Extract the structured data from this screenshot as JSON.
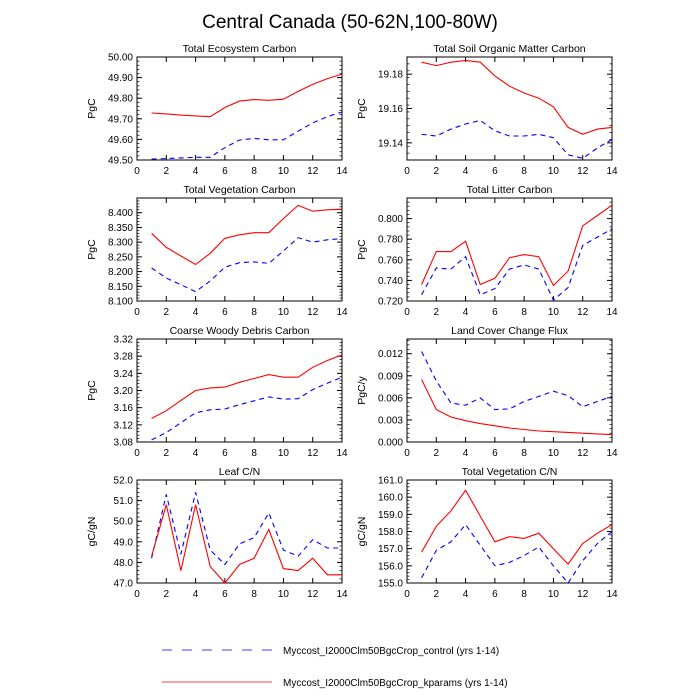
{
  "figure": {
    "title": "Central Canada (50-62N,100-80W)",
    "colors": {
      "control": "#0000ff",
      "kparams": "#ff0000"
    }
  },
  "legend": {
    "placement": "bottom-center",
    "entries": [
      {
        "label": "Myccost_I2000Clm50BgcCrop_control (yrs 1-14)",
        "series": "control",
        "style": "dashed",
        "color": "#0000ff"
      },
      {
        "label": "Myccost_I2000Clm50BgcCrop_kparams (yrs 1-14)",
        "series": "kparams",
        "style": "solid",
        "color": "#ff0000"
      }
    ]
  },
  "chart_data": [
    {
      "type": "line",
      "title": "Total Ecosystem Carbon",
      "xlabel": "",
      "ylabel": "PgC",
      "xlim": [
        0,
        14
      ],
      "ylim": [
        49.5,
        50.0
      ],
      "xticks": [
        0,
        2,
        4,
        6,
        8,
        10,
        12,
        14
      ],
      "yticks": [
        49.5,
        49.6,
        49.7,
        49.8,
        49.9,
        50.0
      ],
      "ytick_labels": [
        "49.50",
        "49.60",
        "49.70",
        "49.80",
        "49.90",
        "50.00"
      ],
      "x": [
        1,
        2,
        3,
        4,
        5,
        6,
        7,
        8,
        9,
        10,
        11,
        12,
        13,
        14
      ],
      "series": [
        {
          "name": "control",
          "values": [
            49.505,
            49.507,
            49.51,
            49.513,
            49.513,
            49.56,
            49.597,
            49.605,
            49.598,
            49.598,
            49.64,
            49.68,
            49.71,
            49.733
          ]
        },
        {
          "name": "kparams",
          "values": [
            49.728,
            49.724,
            49.718,
            49.714,
            49.71,
            49.755,
            49.786,
            49.793,
            49.79,
            49.795,
            49.833,
            49.867,
            49.895,
            49.917
          ]
        }
      ]
    },
    {
      "type": "line",
      "title": "Total Soil Organic Matter Carbon",
      "xlabel": "",
      "ylabel": "PgC",
      "xlim": [
        0,
        14
      ],
      "ylim": [
        19.13,
        19.19
      ],
      "xticks": [
        0,
        2,
        4,
        6,
        8,
        10,
        12,
        14
      ],
      "yticks": [
        19.14,
        19.16,
        19.18
      ],
      "ytick_labels": [
        "19.14",
        "19.16",
        "19.18"
      ],
      "x": [
        1,
        2,
        3,
        4,
        5,
        6,
        7,
        8,
        9,
        10,
        11,
        12,
        13,
        14
      ],
      "series": [
        {
          "name": "control",
          "values": [
            19.145,
            19.144,
            19.148,
            19.151,
            19.153,
            19.147,
            19.144,
            19.144,
            19.145,
            19.143,
            19.133,
            19.131,
            19.137,
            19.142
          ]
        },
        {
          "name": "kparams",
          "values": [
            19.187,
            19.185,
            19.187,
            19.188,
            19.187,
            19.179,
            19.173,
            19.169,
            19.166,
            19.161,
            19.149,
            19.145,
            19.148,
            19.149
          ]
        }
      ]
    },
    {
      "type": "line",
      "title": "Total Vegetation Carbon",
      "xlabel": "",
      "ylabel": "PgC",
      "xlim": [
        0,
        14
      ],
      "ylim": [
        8.1,
        8.45
      ],
      "xticks": [
        0,
        2,
        4,
        6,
        8,
        10,
        12,
        14
      ],
      "yticks": [
        8.1,
        8.15,
        8.2,
        8.25,
        8.3,
        8.35,
        8.4
      ],
      "ytick_labels": [
        "8.100",
        "8.150",
        "8.200",
        "8.250",
        "8.300",
        "8.350",
        "8.400"
      ],
      "x": [
        1,
        2,
        3,
        4,
        5,
        6,
        7,
        8,
        9,
        10,
        11,
        12,
        13,
        14
      ],
      "series": [
        {
          "name": "control",
          "values": [
            8.212,
            8.178,
            8.155,
            8.132,
            8.168,
            8.215,
            8.23,
            8.233,
            8.228,
            8.27,
            8.315,
            8.3,
            8.308,
            8.312
          ]
        },
        {
          "name": "kparams",
          "values": [
            8.33,
            8.282,
            8.253,
            8.224,
            8.262,
            8.313,
            8.325,
            8.332,
            8.332,
            8.38,
            8.425,
            8.405,
            8.41,
            8.412
          ]
        }
      ]
    },
    {
      "type": "line",
      "title": "Total Litter Carbon",
      "xlabel": "",
      "ylabel": "PgC",
      "xlim": [
        0,
        14
      ],
      "ylim": [
        0.72,
        0.82
      ],
      "xticks": [
        0,
        2,
        4,
        6,
        8,
        10,
        12,
        14
      ],
      "yticks": [
        0.72,
        0.74,
        0.76,
        0.78,
        0.8
      ],
      "ytick_labels": [
        "0.720",
        "0.740",
        "0.760",
        "0.780",
        "0.800"
      ],
      "x": [
        1,
        2,
        3,
        4,
        5,
        6,
        7,
        8,
        9,
        10,
        11,
        12,
        13,
        14
      ],
      "series": [
        {
          "name": "control",
          "values": [
            0.726,
            0.752,
            0.751,
            0.763,
            0.726,
            0.732,
            0.751,
            0.755,
            0.751,
            0.721,
            0.733,
            0.774,
            0.782,
            0.79
          ]
        },
        {
          "name": "kparams",
          "values": [
            0.736,
            0.768,
            0.768,
            0.778,
            0.736,
            0.742,
            0.762,
            0.765,
            0.763,
            0.735,
            0.749,
            0.793,
            0.803,
            0.813
          ]
        }
      ]
    },
    {
      "type": "line",
      "title": "Coarse Woody Debris Carbon",
      "xlabel": "",
      "ylabel": "PgC",
      "xlim": [
        0,
        14
      ],
      "ylim": [
        3.08,
        3.32
      ],
      "xticks": [
        0,
        2,
        4,
        6,
        8,
        10,
        12,
        14
      ],
      "yticks": [
        3.08,
        3.12,
        3.16,
        3.2,
        3.24,
        3.28,
        3.32
      ],
      "ytick_labels": [
        "3.08",
        "3.12",
        "3.16",
        "3.20",
        "3.24",
        "3.28",
        "3.32"
      ],
      "x": [
        1,
        2,
        3,
        4,
        5,
        6,
        7,
        8,
        9,
        10,
        11,
        12,
        13,
        14
      ],
      "series": [
        {
          "name": "control",
          "values": [
            3.085,
            3.102,
            3.125,
            3.148,
            3.155,
            3.157,
            3.167,
            3.176,
            3.185,
            3.18,
            3.181,
            3.202,
            3.217,
            3.231
          ]
        },
        {
          "name": "kparams",
          "values": [
            3.135,
            3.153,
            3.177,
            3.2,
            3.206,
            3.208,
            3.219,
            3.228,
            3.237,
            3.231,
            3.231,
            3.254,
            3.27,
            3.283
          ]
        }
      ]
    },
    {
      "type": "line",
      "title": "Land Cover Change Flux",
      "xlabel": "",
      "ylabel": "PgC/y",
      "xlim": [
        0,
        14
      ],
      "ylim": [
        0.0,
        0.014
      ],
      "xticks": [
        0,
        2,
        4,
        6,
        8,
        10,
        12,
        14
      ],
      "yticks": [
        0.0,
        0.003,
        0.006,
        0.009,
        0.012
      ],
      "ytick_labels": [
        "0.000",
        "0.003",
        "0.006",
        "0.009",
        "0.012"
      ],
      "x": [
        1,
        2,
        3,
        4,
        5,
        6,
        7,
        8,
        9,
        10,
        11,
        12,
        13,
        14
      ],
      "series": [
        {
          "name": "control",
          "values": [
            0.0123,
            0.0083,
            0.0053,
            0.005,
            0.006,
            0.0044,
            0.0045,
            0.0055,
            0.0062,
            0.0069,
            0.0063,
            0.0048,
            0.0055,
            0.0062
          ]
        },
        {
          "name": "kparams",
          "values": [
            0.0085,
            0.0044,
            0.0034,
            0.0029,
            0.0025,
            0.0022,
            0.0019,
            0.0017,
            0.0015,
            0.0014,
            0.0013,
            0.0012,
            0.0011,
            0.001
          ]
        }
      ]
    },
    {
      "type": "line",
      "title": "Leaf C/N",
      "xlabel": "",
      "ylabel": "gC/gN",
      "xlim": [
        0,
        14
      ],
      "ylim": [
        47.0,
        52.0
      ],
      "xticks": [
        0,
        2,
        4,
        6,
        8,
        10,
        12,
        14
      ],
      "yticks": [
        47.0,
        48.0,
        49.0,
        50.0,
        51.0,
        52.0
      ],
      "ytick_labels": [
        "47.0",
        "48.0",
        "49.0",
        "50.0",
        "51.0",
        "52.0"
      ],
      "x": [
        1,
        2,
        3,
        4,
        5,
        6,
        7,
        8,
        9,
        10,
        11,
        12,
        13,
        14
      ],
      "series": [
        {
          "name": "control",
          "values": [
            48.2,
            51.3,
            48.4,
            51.4,
            48.6,
            47.9,
            48.9,
            49.2,
            50.4,
            48.6,
            48.3,
            49.1,
            48.7,
            48.7
          ]
        },
        {
          "name": "kparams",
          "values": [
            48.3,
            50.8,
            47.6,
            50.8,
            47.8,
            47.0,
            47.9,
            48.2,
            49.6,
            47.7,
            47.6,
            48.2,
            47.4,
            47.4
          ]
        }
      ]
    },
    {
      "type": "line",
      "title": "Total Vegetation C/N",
      "xlabel": "",
      "ylabel": "gC/gN",
      "xlim": [
        0,
        14
      ],
      "ylim": [
        155.0,
        161.0
      ],
      "xticks": [
        0,
        2,
        4,
        6,
        8,
        10,
        12,
        14
      ],
      "yticks": [
        155.0,
        156.0,
        157.0,
        158.0,
        159.0,
        160.0,
        161.0
      ],
      "ytick_labels": [
        "155.0",
        "156.0",
        "157.0",
        "158.0",
        "159.0",
        "160.0",
        "161.0"
      ],
      "x": [
        1,
        2,
        3,
        4,
        5,
        6,
        7,
        8,
        9,
        10,
        11,
        12,
        13,
        14
      ],
      "series": [
        {
          "name": "control",
          "values": [
            155.3,
            156.9,
            157.4,
            158.4,
            157.2,
            156.0,
            156.2,
            156.6,
            157.1,
            156.0,
            155.0,
            156.3,
            157.3,
            158.0
          ]
        },
        {
          "name": "kparams",
          "values": [
            156.8,
            158.3,
            159.2,
            160.4,
            158.9,
            157.4,
            157.7,
            157.6,
            157.9,
            157.0,
            156.1,
            157.3,
            157.9,
            158.4
          ]
        }
      ]
    }
  ]
}
